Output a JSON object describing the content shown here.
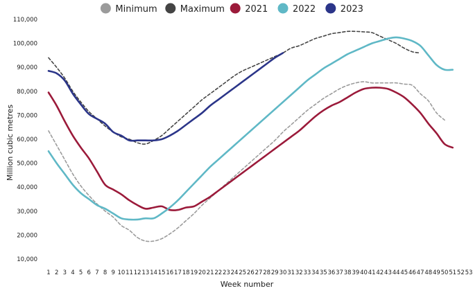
{
  "chart_data": {
    "type": "line",
    "xlabel": "Week number",
    "ylabel": "Million cubic metres",
    "ylim": [
      10000,
      110000
    ],
    "yticks": [
      10000,
      20000,
      30000,
      40000,
      50000,
      60000,
      70000,
      80000,
      90000,
      100000,
      110000
    ],
    "ytick_labels": [
      "10,000",
      "20,000",
      "30,000",
      "40,000",
      "50,000",
      "60,000",
      "70,000",
      "80,000",
      "90,000",
      "100,000",
      "110,000"
    ],
    "xlim": [
      1,
      53
    ],
    "xticks": [
      "1",
      "2",
      "3",
      "4",
      "5",
      "6",
      "7",
      "8",
      "9",
      "10",
      "11",
      "12",
      "13",
      "14",
      "15",
      "16",
      "17",
      "18",
      "19",
      "20",
      "21",
      "22",
      "23",
      "24",
      "25",
      "26",
      "27",
      "28",
      "29",
      "30",
      "31",
      "32",
      "33",
      "34",
      "35",
      "36",
      "37",
      "38",
      "39",
      "40",
      "41",
      "42",
      "43",
      "44",
      "45",
      "46",
      "47",
      "48",
      "49",
      "50",
      "51",
      "52",
      "53"
    ],
    "grid": false,
    "legend_position": "top-center",
    "series": [
      {
        "name": "Minimum",
        "color": "#9b9b9b",
        "dashed": true,
        "x": [
          1,
          2,
          3,
          4,
          5,
          6,
          7,
          8,
          9,
          10,
          11,
          12,
          13,
          14,
          15,
          16,
          17,
          18,
          19,
          20,
          21,
          22,
          23,
          24,
          25,
          26,
          27,
          28,
          29,
          30,
          31,
          32,
          33,
          34,
          35,
          36,
          37,
          38,
          39,
          40,
          41,
          42,
          43,
          44,
          45,
          46,
          47,
          48,
          49,
          50,
          51,
          52
        ],
        "values": [
          63500,
          57500,
          51500,
          45500,
          40500,
          36500,
          33000,
          30000,
          27500,
          24000,
          22000,
          19000,
          17500,
          17500,
          18500,
          20500,
          23000,
          26000,
          29000,
          32500,
          35500,
          38500,
          41500,
          44500,
          47500,
          50500,
          53500,
          56500,
          59500,
          63000,
          66000,
          69000,
          72000,
          74500,
          77000,
          79000,
          81000,
          82500,
          83500,
          84000,
          83500,
          83500,
          83500,
          83500,
          83000,
          82500,
          79000,
          76000,
          71000,
          68000,
          null,
          null
        ]
      },
      {
        "name": "Maximum",
        "color": "#444444",
        "dashed": true,
        "x": [
          1,
          2,
          3,
          4,
          5,
          6,
          7,
          8,
          9,
          10,
          11,
          12,
          13,
          14,
          15,
          16,
          17,
          18,
          19,
          20,
          21,
          22,
          23,
          24,
          25,
          26,
          27,
          28,
          29,
          30,
          31,
          32,
          33,
          34,
          35,
          36,
          37,
          38,
          39,
          40,
          41,
          42,
          43,
          44,
          45,
          46,
          47,
          48,
          49,
          50,
          51,
          52
        ],
        "values": [
          94000,
          90000,
          85500,
          80000,
          75500,
          71500,
          68500,
          65500,
          63000,
          61000,
          60000,
          58500,
          58000,
          59500,
          61500,
          64500,
          67500,
          70500,
          73500,
          76500,
          79000,
          81500,
          84000,
          86500,
          88500,
          90000,
          91500,
          93000,
          94500,
          96000,
          98000,
          99000,
          100500,
          102000,
          103000,
          104000,
          104500,
          105000,
          105000,
          104800,
          104500,
          103000,
          101500,
          100000,
          98000,
          96500,
          96000,
          null,
          null,
          null,
          null,
          null
        ]
      },
      {
        "name": "2021",
        "color": "#9b1a3a",
        "dashed": false,
        "x": [
          1,
          2,
          3,
          4,
          5,
          6,
          7,
          8,
          9,
          10,
          11,
          12,
          13,
          14,
          15,
          16,
          17,
          18,
          19,
          20,
          21,
          22,
          23,
          24,
          25,
          26,
          27,
          28,
          29,
          30,
          31,
          32,
          33,
          34,
          35,
          36,
          37,
          38,
          39,
          40,
          41,
          42,
          43,
          44,
          45,
          46,
          47,
          48,
          49,
          50,
          51,
          52,
          53
        ],
        "values": [
          79500,
          74000,
          67500,
          61500,
          56500,
          52000,
          46500,
          41000,
          39000,
          37000,
          34500,
          32500,
          31000,
          31500,
          32000,
          30500,
          30500,
          31500,
          32000,
          34000,
          36000,
          38500,
          41000,
          43500,
          46000,
          48500,
          51000,
          53500,
          56000,
          58500,
          61000,
          63500,
          66500,
          69500,
          72000,
          74000,
          75500,
          77500,
          79500,
          81000,
          81500,
          81500,
          81000,
          79500,
          77500,
          74500,
          71000,
          66500,
          62500,
          58000,
          56500,
          null,
          null
        ]
      },
      {
        "name": "2022",
        "color": "#5fb8c6",
        "dashed": false,
        "x": [
          1,
          2,
          3,
          4,
          5,
          6,
          7,
          8,
          9,
          10,
          11,
          12,
          13,
          14,
          15,
          16,
          17,
          18,
          19,
          20,
          21,
          22,
          23,
          24,
          25,
          26,
          27,
          28,
          29,
          30,
          31,
          32,
          33,
          34,
          35,
          36,
          37,
          38,
          39,
          40,
          41,
          42,
          43,
          44,
          45,
          46,
          47,
          48,
          49,
          50,
          51,
          52,
          53
        ],
        "values": [
          55000,
          50000,
          45500,
          41000,
          37500,
          35000,
          32500,
          31000,
          29000,
          27000,
          26500,
          26500,
          27000,
          27000,
          29000,
          31500,
          34500,
          38000,
          41500,
          45000,
          48500,
          51500,
          54500,
          57500,
          60500,
          63500,
          66500,
          69500,
          72500,
          75500,
          78500,
          81500,
          84500,
          87000,
          89500,
          91500,
          93500,
          95500,
          97000,
          98500,
          100000,
          101000,
          102000,
          102500,
          102000,
          101000,
          99000,
          95000,
          91000,
          89000,
          89000,
          null,
          null
        ]
      },
      {
        "name": "2023",
        "color": "#2b3589",
        "dashed": false,
        "x": [
          1,
          2,
          3,
          4,
          5,
          6,
          7,
          8,
          9,
          10,
          11,
          12,
          13,
          14,
          15,
          16,
          17,
          18,
          19,
          20,
          21,
          22,
          23,
          24,
          25,
          26,
          27,
          28,
          29,
          30,
          31,
          32
        ],
        "values": [
          88500,
          87500,
          84500,
          79000,
          74500,
          70500,
          68500,
          66500,
          63000,
          61500,
          59500,
          59500,
          59500,
          59500,
          60000,
          61500,
          63500,
          66000,
          68500,
          71000,
          74000,
          76500,
          79000,
          81500,
          84000,
          86500,
          89000,
          91500,
          94000,
          96000,
          null,
          null
        ]
      }
    ]
  }
}
